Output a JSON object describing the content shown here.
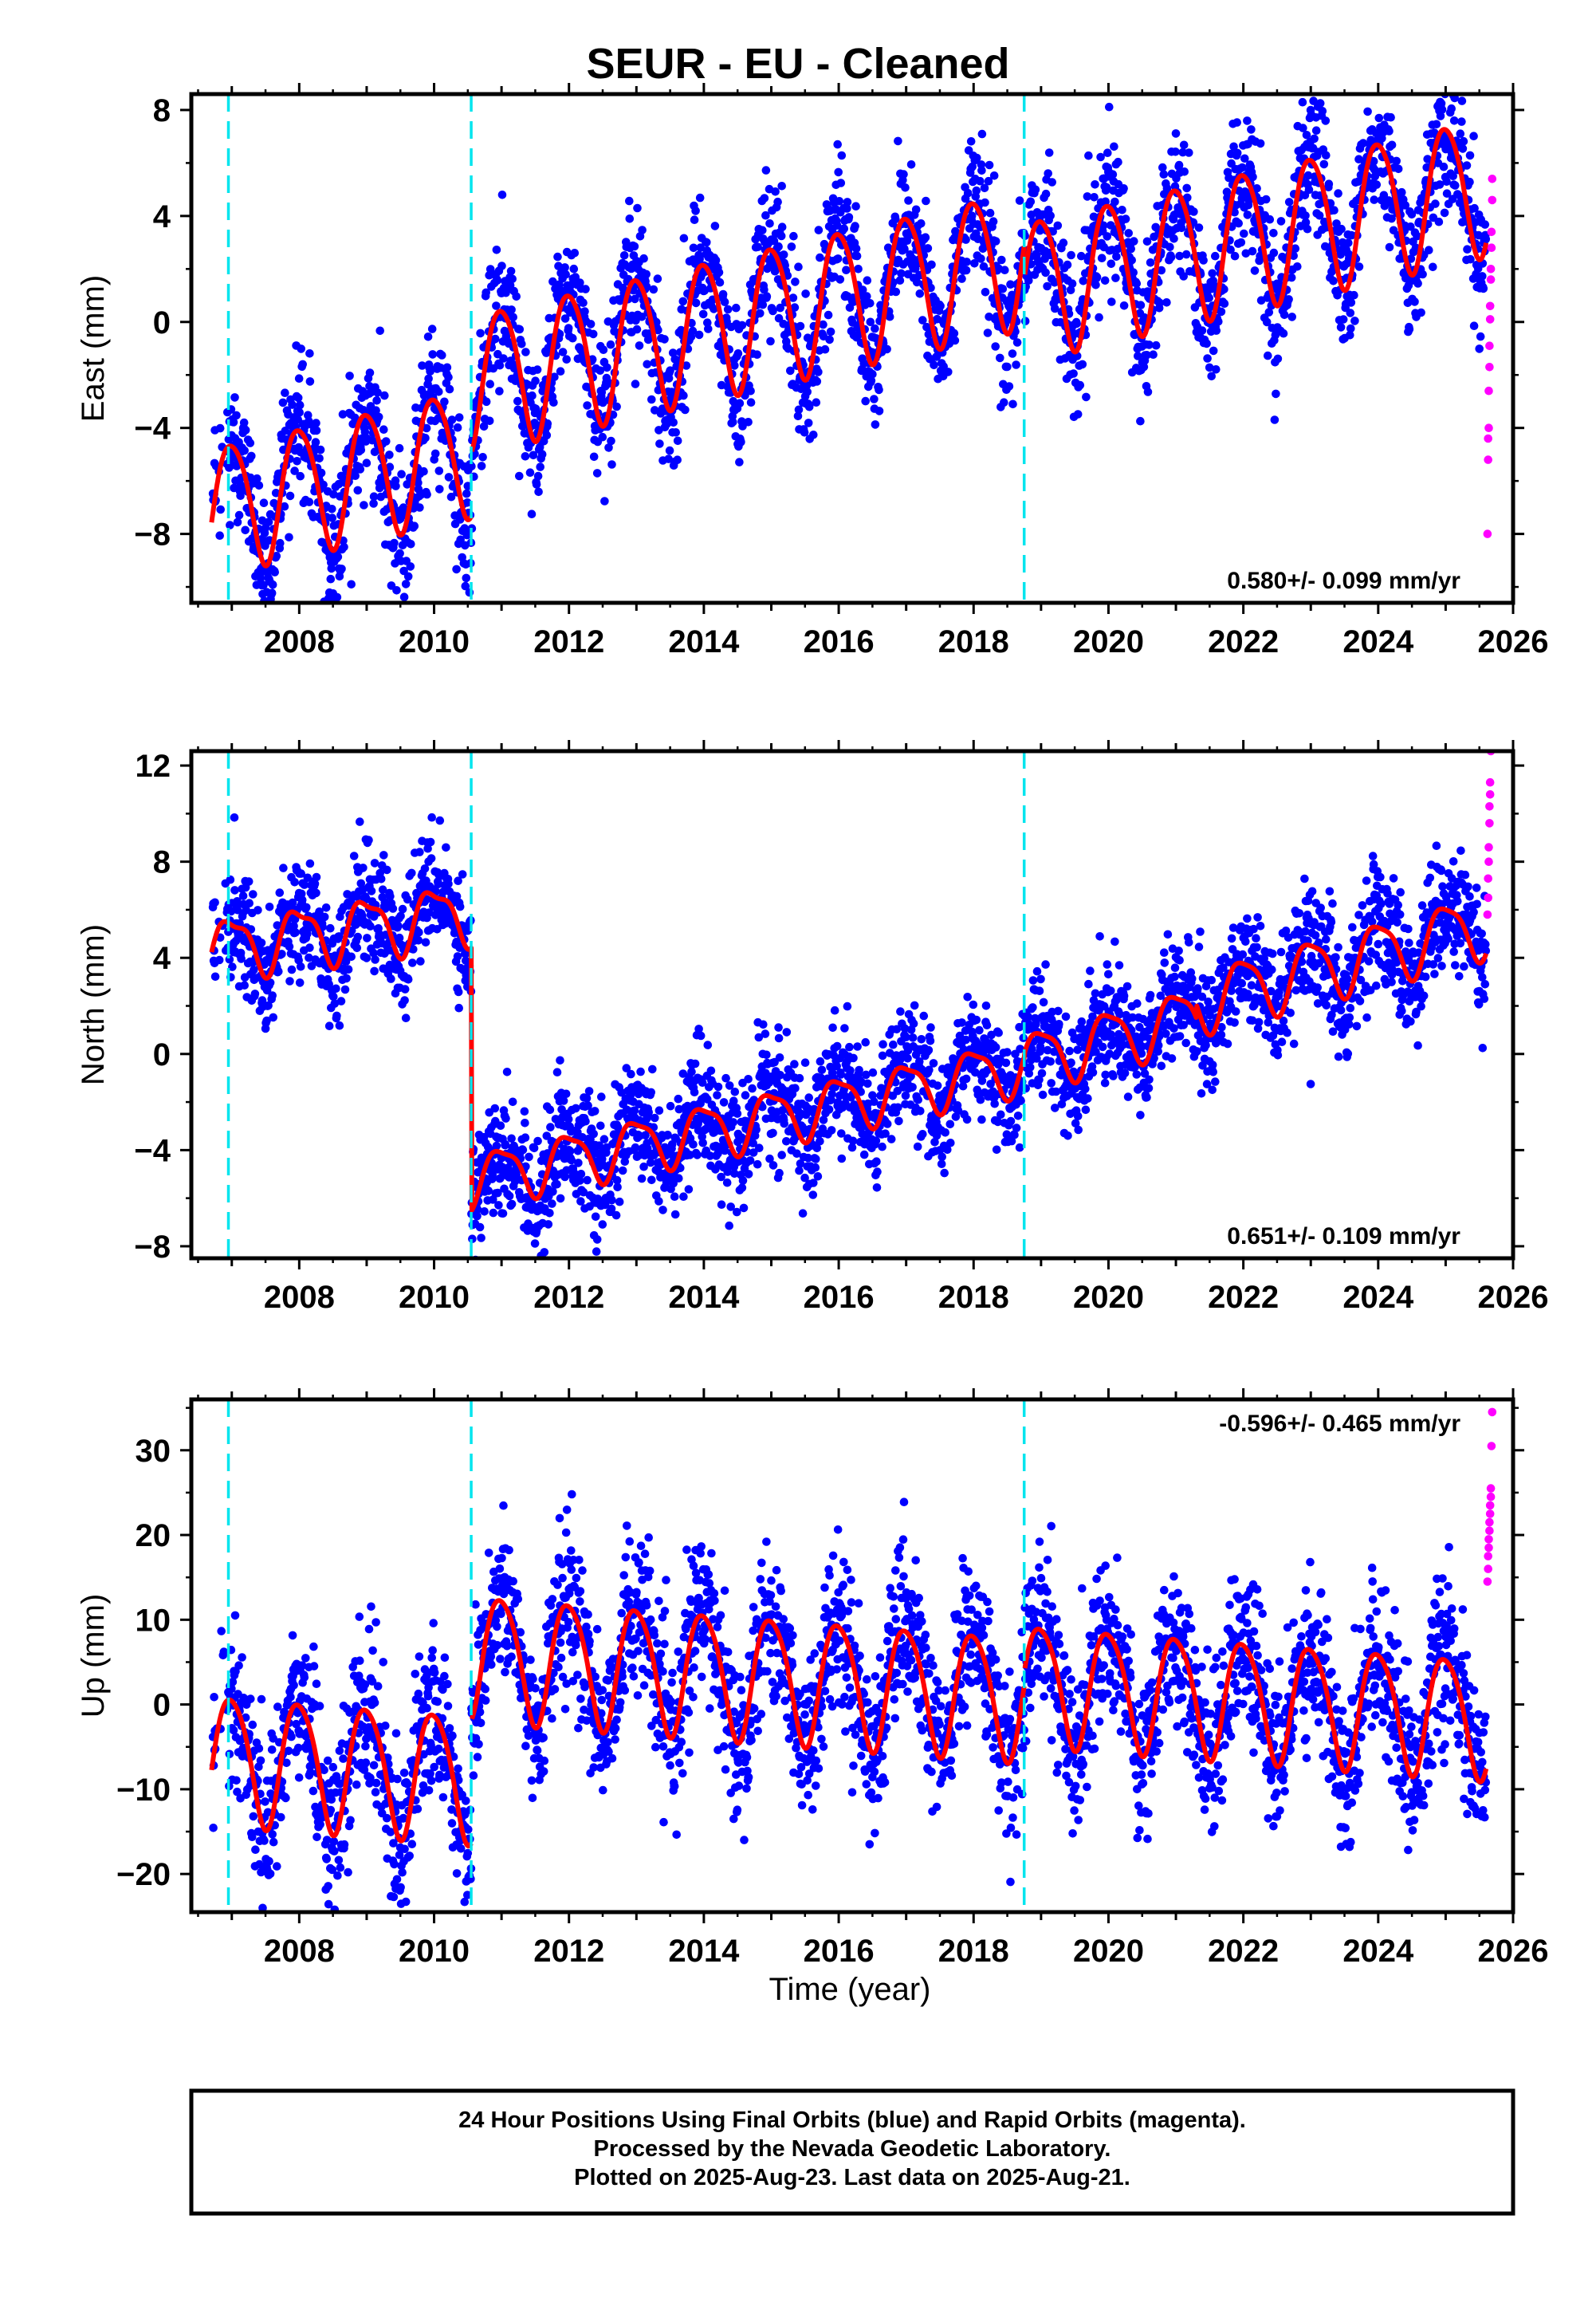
{
  "chart_data": {
    "type": "scatter",
    "title": "SEUR  - EU - Cleaned",
    "xlabel": "Time (year)",
    "xlim": [
      2006.4,
      2026.0
    ],
    "x_ticks": [
      2008,
      2010,
      2012,
      2014,
      2016,
      2018,
      2020,
      2022,
      2024,
      2026
    ],
    "x_tick_labels": [
      "2008",
      "2010",
      "2012",
      "2014",
      "2016",
      "2018",
      "2020",
      "2022",
      "2024",
      "2026"
    ],
    "event_lines_x": [
      2006.95,
      2010.55,
      2018.75
    ],
    "colors": {
      "final": "#0000ff",
      "rapid": "#ff00ff",
      "model": "#ff0000",
      "event": "#00e5ee"
    },
    "panels": [
      {
        "ylabel": "East (mm)",
        "ylim": [
          -10.6,
          8.6
        ],
        "y_ticks": [
          8,
          4,
          0,
          -4,
          -8
        ],
        "y_tick_labels": [
          "8",
          "4",
          "0",
          "−4",
          "−8"
        ],
        "rate_text": "0.580+/- 0.099 mm/yr",
        "rate_position": "bottom-right",
        "model": {
          "segments": [
            {
              "x_start": 2006.7,
              "x_end": 2010.55,
              "offset": -7.0,
              "rate": 0.58,
              "amp_annual": 2.4,
              "amp_semi": 0.3
            },
            {
              "x_start": 2010.55,
              "x_end": 2018.75,
              "offset": -2.2,
              "rate": 0.58,
              "amp_annual": 2.6,
              "amp_semi": 0.3
            },
            {
              "x_start": 2018.75,
              "x_end": 2025.6,
              "offset": 1.3,
              "rate": 0.58,
              "amp_annual": 2.6,
              "amp_semi": 0.3
            }
          ],
          "noise": 1.3
        },
        "rapid_points": [
          [
            2025.62,
            -8.0
          ],
          [
            2025.63,
            -5.2
          ],
          [
            2025.63,
            -4.4
          ],
          [
            2025.64,
            -4.0
          ],
          [
            2025.64,
            -2.6
          ],
          [
            2025.65,
            -1.7
          ],
          [
            2025.65,
            -0.9
          ],
          [
            2025.66,
            0.1
          ],
          [
            2025.66,
            0.6
          ],
          [
            2025.67,
            1.6
          ],
          [
            2025.67,
            2.0
          ],
          [
            2025.68,
            2.8
          ],
          [
            2025.68,
            3.4
          ],
          [
            2025.69,
            4.6
          ],
          [
            2025.69,
            5.4
          ]
        ]
      },
      {
        "ylabel": "North (mm)",
        "ylim": [
          -8.5,
          12.6
        ],
        "y_ticks": [
          12,
          8,
          4,
          0,
          -4,
          -8
        ],
        "y_tick_labels": [
          "12",
          "8",
          "4",
          "0",
          "−4",
          "−8"
        ],
        "rate_text": "0.651+/- 0.109 mm/yr",
        "rate_position": "bottom-right",
        "model": {
          "segments": [
            {
              "x_start": 2006.7,
              "x_end": 2010.55,
              "offset": 4.4,
              "rate": 0.4,
              "amp_annual": 1.2,
              "amp_semi": 0.4
            },
            {
              "x_start": 2010.55,
              "x_end": 2018.75,
              "offset": -5.2,
              "rate": 0.58,
              "amp_annual": 1.1,
              "amp_semi": 0.3
            },
            {
              "x_start": 2018.75,
              "x_end": 2021.3,
              "offset": -0.3,
              "rate": 0.75,
              "amp_annual": 1.2,
              "amp_semi": 0.3
            },
            {
              "x_start": 2021.3,
              "x_end": 2025.6,
              "offset": 2.2,
              "rate": 0.75,
              "amp_annual": 1.3,
              "amp_semi": 0.3
            }
          ],
          "noise": 1.2
        },
        "rapid_points": [
          [
            2025.62,
            5.8
          ],
          [
            2025.63,
            6.5
          ],
          [
            2025.63,
            7.3
          ],
          [
            2025.64,
            8.0
          ],
          [
            2025.64,
            8.6
          ],
          [
            2025.65,
            9.6
          ],
          [
            2025.65,
            10.3
          ],
          [
            2025.66,
            10.8
          ],
          [
            2025.66,
            11.3
          ],
          [
            2025.67,
            12.6
          ]
        ]
      },
      {
        "ylabel": "Up (mm)",
        "ylim": [
          -24.5,
          36.0
        ],
        "y_ticks": [
          30,
          20,
          10,
          0,
          -10,
          -20
        ],
        "y_tick_labels": [
          "30",
          "20",
          "10",
          "0",
          "−10",
          "−20"
        ],
        "rate_text": "-0.596+/- 0.465 mm/yr",
        "rate_position": "top-right",
        "model": {
          "segments": [
            {
              "x_start": 2006.7,
              "x_end": 2010.55,
              "offset": -6.0,
              "rate": -0.596,
              "amp_annual": 7.5,
              "amp_semi": 1.0
            },
            {
              "x_start": 2010.55,
              "x_end": 2018.75,
              "offset": 6.0,
              "rate": -0.596,
              "amp_annual": 7.3,
              "amp_semi": 1.0
            },
            {
              "x_start": 2018.75,
              "x_end": 2025.6,
              "offset": 2.8,
              "rate": -0.596,
              "amp_annual": 7.0,
              "amp_semi": 1.0
            }
          ],
          "noise": 4.6
        },
        "rapid_points": [
          [
            2025.62,
            14.5
          ],
          [
            2025.63,
            16.0
          ],
          [
            2025.63,
            17.5
          ],
          [
            2025.64,
            18.5
          ],
          [
            2025.64,
            19.5
          ],
          [
            2025.65,
            20.5
          ],
          [
            2025.65,
            21.5
          ],
          [
            2025.66,
            22.5
          ],
          [
            2025.66,
            23.5
          ],
          [
            2025.67,
            24.5
          ],
          [
            2025.67,
            25.5
          ],
          [
            2025.68,
            30.5
          ],
          [
            2025.69,
            34.5
          ]
        ]
      }
    ],
    "footer": {
      "lines": [
        "24 Hour Positions Using Final Orbits (blue) and Rapid Orbits (magenta).",
        "Processed by the Nevada Geodetic Laboratory.",
        "Plotted on 2025-Aug-23. Last data on 2025-Aug-21."
      ]
    }
  }
}
